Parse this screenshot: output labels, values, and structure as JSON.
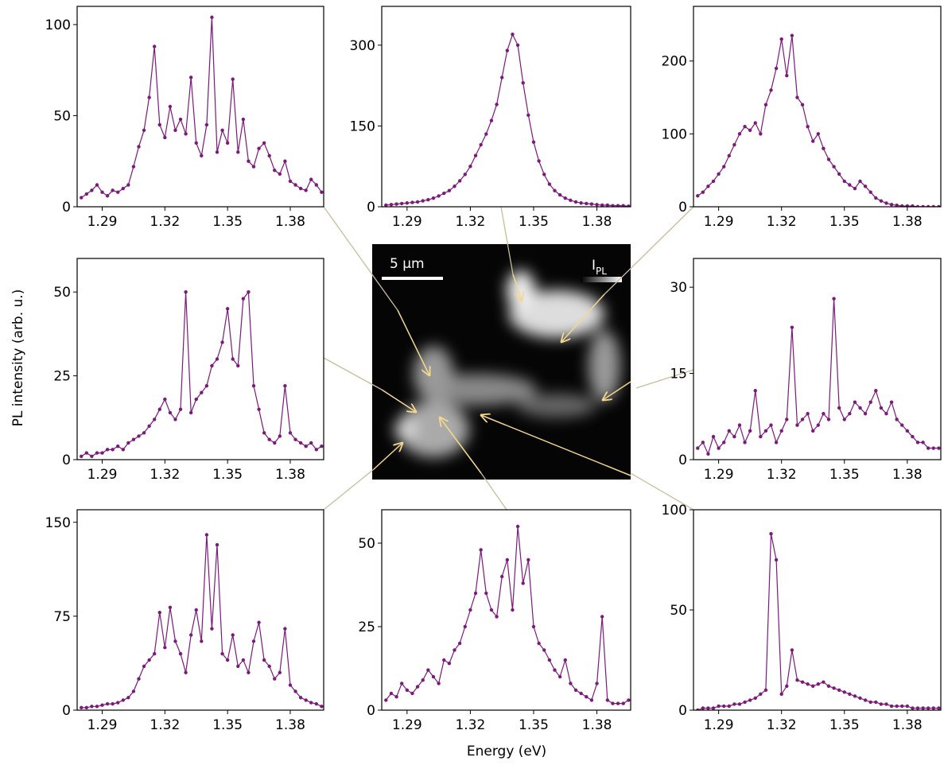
{
  "chart_data": [
    {
      "type": "line",
      "color": "#7b1a7b",
      "xlim": [
        1.278,
        1.396
      ],
      "xticks": [
        1.29,
        1.32,
        1.35,
        1.38
      ],
      "ylim": [
        0,
        110
      ],
      "yticks": [
        0,
        50,
        100
      ],
      "x": [
        1.28,
        1.2825,
        1.285,
        1.2875,
        1.29,
        1.2925,
        1.295,
        1.2975,
        1.3,
        1.3025,
        1.305,
        1.3075,
        1.31,
        1.3125,
        1.315,
        1.3175,
        1.32,
        1.3225,
        1.325,
        1.3275,
        1.33,
        1.3325,
        1.335,
        1.3375,
        1.34,
        1.3425,
        1.345,
        1.3475,
        1.35,
        1.3525,
        1.355,
        1.3575,
        1.36,
        1.3625,
        1.365,
        1.3675,
        1.37,
        1.3725,
        1.375,
        1.3775,
        1.38,
        1.3825,
        1.385,
        1.3875,
        1.39,
        1.3925,
        1.395
      ],
      "values": [
        5,
        7,
        9,
        12,
        8,
        6,
        9,
        8,
        10,
        12,
        22,
        33,
        42,
        60,
        88,
        45,
        38,
        55,
        42,
        48,
        40,
        71,
        35,
        28,
        45,
        104,
        30,
        42,
        35,
        70,
        30,
        48,
        25,
        22,
        32,
        35,
        28,
        20,
        18,
        25,
        14,
        12,
        10,
        9,
        15,
        12,
        8
      ]
    },
    {
      "type": "line",
      "color": "#7b1a7b",
      "xlim": [
        1.278,
        1.396
      ],
      "xticks": [
        1.29,
        1.32,
        1.35,
        1.38
      ],
      "ylim": [
        0,
        372
      ],
      "yticks": [
        0,
        150,
        300
      ],
      "x": [
        1.28,
        1.2825,
        1.285,
        1.2875,
        1.29,
        1.2925,
        1.295,
        1.2975,
        1.3,
        1.3025,
        1.305,
        1.3075,
        1.31,
        1.3125,
        1.315,
        1.3175,
        1.32,
        1.3225,
        1.325,
        1.3275,
        1.33,
        1.3325,
        1.335,
        1.3375,
        1.34,
        1.3425,
        1.345,
        1.3475,
        1.35,
        1.3525,
        1.355,
        1.3575,
        1.36,
        1.3625,
        1.365,
        1.3675,
        1.37,
        1.3725,
        1.375,
        1.3775,
        1.38,
        1.3825,
        1.385,
        1.3875,
        1.39,
        1.3925,
        1.395
      ],
      "values": [
        3,
        4,
        5,
        6,
        7,
        8,
        9,
        11,
        13,
        16,
        20,
        25,
        30,
        38,
        48,
        60,
        75,
        95,
        115,
        135,
        160,
        190,
        240,
        290,
        320,
        300,
        230,
        170,
        120,
        85,
        60,
        42,
        30,
        22,
        16,
        12,
        9,
        7,
        6,
        5,
        4,
        3,
        3,
        2,
        2,
        2,
        1
      ]
    },
    {
      "type": "line",
      "color": "#7b1a7b",
      "xlim": [
        1.278,
        1.396
      ],
      "xticks": [
        1.29,
        1.32,
        1.35,
        1.38
      ],
      "ylim": [
        0,
        275
      ],
      "yticks": [
        0,
        100,
        200
      ],
      "x": [
        1.28,
        1.2825,
        1.285,
        1.2875,
        1.29,
        1.2925,
        1.295,
        1.2975,
        1.3,
        1.3025,
        1.305,
        1.3075,
        1.31,
        1.3125,
        1.315,
        1.3175,
        1.32,
        1.3225,
        1.325,
        1.3275,
        1.33,
        1.3325,
        1.335,
        1.3375,
        1.34,
        1.3425,
        1.345,
        1.3475,
        1.35,
        1.3525,
        1.355,
        1.3575,
        1.36,
        1.3625,
        1.365,
        1.3675,
        1.37,
        1.3725,
        1.375,
        1.3775,
        1.38,
        1.3825,
        1.385,
        1.3875,
        1.39,
        1.3925,
        1.395
      ],
      "values": [
        15,
        20,
        28,
        35,
        45,
        55,
        70,
        85,
        100,
        110,
        105,
        115,
        100,
        140,
        160,
        190,
        230,
        180,
        235,
        150,
        140,
        110,
        90,
        100,
        80,
        65,
        55,
        45,
        35,
        30,
        25,
        35,
        28,
        20,
        12,
        8,
        5,
        3,
        2,
        1,
        1,
        1,
        0,
        0,
        0,
        0,
        0
      ]
    },
    {
      "type": "line",
      "color": "#7b1a7b",
      "xlim": [
        1.278,
        1.396
      ],
      "xticks": [
        1.29,
        1.32,
        1.35,
        1.38
      ],
      "ylim": [
        0,
        60
      ],
      "yticks": [
        0,
        25,
        50
      ],
      "x": [
        1.28,
        1.2825,
        1.285,
        1.2875,
        1.29,
        1.2925,
        1.295,
        1.2975,
        1.3,
        1.3025,
        1.305,
        1.3075,
        1.31,
        1.3125,
        1.315,
        1.3175,
        1.32,
        1.3225,
        1.325,
        1.3275,
        1.33,
        1.3325,
        1.335,
        1.3375,
        1.34,
        1.3425,
        1.345,
        1.3475,
        1.35,
        1.3525,
        1.355,
        1.3575,
        1.36,
        1.3625,
        1.365,
        1.3675,
        1.37,
        1.3725,
        1.375,
        1.3775,
        1.38,
        1.3825,
        1.385,
        1.3875,
        1.39,
        1.3925,
        1.395
      ],
      "values": [
        1,
        2,
        1,
        2,
        2,
        3,
        3,
        4,
        3,
        5,
        6,
        7,
        8,
        10,
        12,
        15,
        18,
        14,
        12,
        15,
        50,
        14,
        18,
        20,
        22,
        28,
        30,
        35,
        45,
        30,
        28,
        48,
        50,
        22,
        15,
        8,
        6,
        5,
        7,
        22,
        8,
        6,
        5,
        4,
        5,
        3,
        4
      ]
    },
    {
      "type": "line",
      "color": "#7b1a7b",
      "xlim": [
        1.278,
        1.396
      ],
      "xticks": [
        1.29,
        1.32,
        1.35,
        1.38
      ],
      "ylim": [
        0,
        35
      ],
      "yticks": [
        0,
        15,
        30
      ],
      "x": [
        1.28,
        1.2825,
        1.285,
        1.2875,
        1.29,
        1.2925,
        1.295,
        1.2975,
        1.3,
        1.3025,
        1.305,
        1.3075,
        1.31,
        1.3125,
        1.315,
        1.3175,
        1.32,
        1.3225,
        1.325,
        1.3275,
        1.33,
        1.3325,
        1.335,
        1.3375,
        1.34,
        1.3425,
        1.345,
        1.3475,
        1.35,
        1.3525,
        1.355,
        1.3575,
        1.36,
        1.3625,
        1.365,
        1.3675,
        1.37,
        1.3725,
        1.375,
        1.3775,
        1.38,
        1.3825,
        1.385,
        1.3875,
        1.39,
        1.3925,
        1.395
      ],
      "values": [
        2,
        3,
        1,
        4,
        2,
        3,
        5,
        4,
        6,
        3,
        5,
        12,
        4,
        5,
        6,
        3,
        5,
        7,
        23,
        6,
        7,
        8,
        5,
        6,
        8,
        7,
        28,
        9,
        7,
        8,
        10,
        9,
        8,
        10,
        12,
        9,
        8,
        10,
        7,
        6,
        5,
        4,
        3,
        3,
        2,
        2,
        2
      ]
    },
    {
      "type": "line",
      "color": "#7b1a7b",
      "xlim": [
        1.278,
        1.396
      ],
      "xticks": [
        1.29,
        1.32,
        1.35,
        1.38
      ],
      "ylim": [
        0,
        160
      ],
      "yticks": [
        0,
        75,
        150
      ],
      "x": [
        1.28,
        1.2825,
        1.285,
        1.2875,
        1.29,
        1.2925,
        1.295,
        1.2975,
        1.3,
        1.3025,
        1.305,
        1.3075,
        1.31,
        1.3125,
        1.315,
        1.3175,
        1.32,
        1.3225,
        1.325,
        1.3275,
        1.33,
        1.3325,
        1.335,
        1.3375,
        1.34,
        1.3425,
        1.345,
        1.3475,
        1.35,
        1.3525,
        1.355,
        1.3575,
        1.36,
        1.3625,
        1.365,
        1.3675,
        1.37,
        1.3725,
        1.375,
        1.3775,
        1.38,
        1.3825,
        1.385,
        1.3875,
        1.39,
        1.3925,
        1.395
      ],
      "values": [
        2,
        2,
        3,
        3,
        4,
        5,
        5,
        6,
        8,
        10,
        15,
        25,
        35,
        40,
        45,
        78,
        50,
        82,
        55,
        45,
        30,
        60,
        80,
        55,
        140,
        65,
        132,
        45,
        40,
        60,
        35,
        40,
        30,
        55,
        70,
        40,
        35,
        25,
        30,
        65,
        20,
        15,
        10,
        8,
        6,
        5,
        3
      ]
    },
    {
      "type": "line",
      "color": "#7b1a7b",
      "xlim": [
        1.278,
        1.396
      ],
      "xticks": [
        1.29,
        1.32,
        1.35,
        1.38
      ],
      "ylim": [
        0,
        60
      ],
      "yticks": [
        0,
        25,
        50
      ],
      "x": [
        1.28,
        1.2825,
        1.285,
        1.2875,
        1.29,
        1.2925,
        1.295,
        1.2975,
        1.3,
        1.3025,
        1.305,
        1.3075,
        1.31,
        1.3125,
        1.315,
        1.3175,
        1.32,
        1.3225,
        1.325,
        1.3275,
        1.33,
        1.3325,
        1.335,
        1.3375,
        1.34,
        1.3425,
        1.345,
        1.3475,
        1.35,
        1.3525,
        1.355,
        1.3575,
        1.36,
        1.3625,
        1.365,
        1.3675,
        1.37,
        1.3725,
        1.375,
        1.3775,
        1.38,
        1.3825,
        1.385,
        1.3875,
        1.39,
        1.3925,
        1.395
      ],
      "values": [
        3,
        5,
        4,
        8,
        6,
        5,
        7,
        9,
        12,
        10,
        8,
        15,
        14,
        18,
        20,
        25,
        30,
        35,
        48,
        35,
        30,
        28,
        40,
        45,
        30,
        55,
        38,
        45,
        25,
        20,
        18,
        15,
        12,
        10,
        15,
        8,
        6,
        5,
        4,
        3,
        8,
        28,
        3,
        2,
        2,
        2,
        3
      ]
    },
    {
      "type": "line",
      "color": "#7b1a7b",
      "xlim": [
        1.278,
        1.396
      ],
      "xticks": [
        1.29,
        1.32,
        1.35,
        1.38
      ],
      "ylim": [
        0,
        100
      ],
      "yticks": [
        0,
        50,
        100
      ],
      "x": [
        1.28,
        1.2825,
        1.285,
        1.2875,
        1.29,
        1.2925,
        1.295,
        1.2975,
        1.3,
        1.3025,
        1.305,
        1.3075,
        1.31,
        1.3125,
        1.315,
        1.3175,
        1.32,
        1.3225,
        1.325,
        1.3275,
        1.33,
        1.3325,
        1.335,
        1.3375,
        1.34,
        1.3425,
        1.345,
        1.3475,
        1.35,
        1.3525,
        1.355,
        1.3575,
        1.36,
        1.3625,
        1.365,
        1.3675,
        1.37,
        1.3725,
        1.375,
        1.3775,
        1.38,
        1.3825,
        1.385,
        1.3875,
        1.39,
        1.3925,
        1.395
      ],
      "values": [
        0,
        1,
        1,
        1,
        2,
        2,
        2,
        3,
        3,
        4,
        5,
        6,
        8,
        10,
        88,
        75,
        8,
        12,
        30,
        15,
        14,
        13,
        12,
        13,
        14,
        12,
        11,
        10,
        9,
        8,
        7,
        6,
        5,
        4,
        4,
        3,
        3,
        2,
        2,
        2,
        2,
        1,
        1,
        1,
        1,
        1,
        1
      ]
    }
  ],
  "y_label": "PL intensity (arb. u.)",
  "x_label": "Energy (eV)",
  "image": {
    "scale_bar": "5 µm",
    "colorbar_label": "I",
    "colorbar_subscript": "PL"
  }
}
